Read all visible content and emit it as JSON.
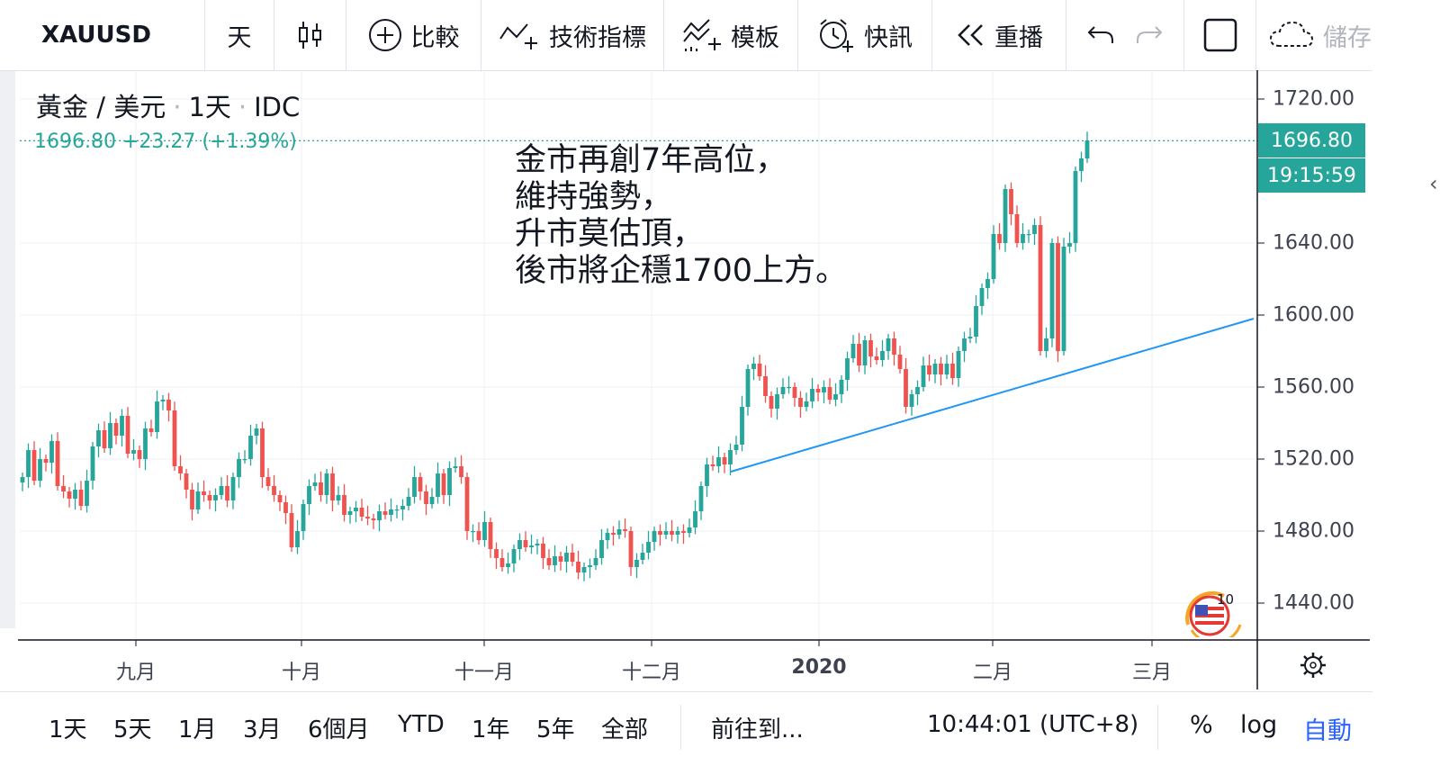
{
  "toolbar": {
    "symbol": "XAUUSD",
    "interval": "天",
    "compare": "比較",
    "indicators": "技術指標",
    "templates": "模板",
    "alert": "快訊",
    "replay": "重播",
    "save": "儲存"
  },
  "legend": {
    "title": "黃金 / 美元",
    "interval": "1天",
    "source": "IDC",
    "price_line": "1696.80 +23.27 (+1.39%)"
  },
  "annotation": "金市再創7年高位，\n維持強勢，\n升市莫估頂，\n後市將企穩1700上方。",
  "price_axis": {
    "labels": [
      "1720.00",
      "1640.00",
      "1600.00",
      "1560.00",
      "1520.00",
      "1480.00",
      "1440.00"
    ],
    "current_price": "1696.80",
    "countdown": "19:15:59"
  },
  "time_axis": {
    "labels": [
      "九月",
      "十月",
      "十一月",
      "十二月",
      "2020",
      "二月",
      "三月"
    ]
  },
  "badge": {
    "text": "10"
  },
  "bottom": {
    "ranges": [
      "1天",
      "5天",
      "1月",
      "3月",
      "6個月",
      "YTD",
      "1年",
      "5年",
      "全部"
    ],
    "goto": "前往到...",
    "time": "10:44:01 (UTC+8)",
    "percent": "%",
    "log": "log",
    "auto": "自動"
  },
  "colors": {
    "up": "#26a69a",
    "down": "#ef5350",
    "trend": "#2196f3",
    "accent": "#2962ff"
  },
  "chart_data": {
    "type": "candlestick",
    "title": "黃金 / 美元 · 1天 · IDC",
    "ylim": [
      1430,
      1735
    ],
    "y_ticks": [
      1440,
      1480,
      1520,
      1560,
      1600,
      1640,
      1720
    ],
    "x_labels": [
      "九月",
      "十月",
      "十一月",
      "十二月",
      "2020",
      "二月",
      "三月"
    ],
    "last_price": 1696.8,
    "change": 23.27,
    "change_pct": 1.39,
    "closes": [
      1510,
      1525,
      1508,
      1520,
      1518,
      1530,
      1505,
      1502,
      1498,
      1503,
      1494,
      1508,
      1527,
      1536,
      1526,
      1540,
      1533,
      1544,
      1523,
      1525,
      1520,
      1537,
      1535,
      1552,
      1553,
      1547,
      1516,
      1512,
      1503,
      1492,
      1502,
      1500,
      1497,
      1500,
      1505,
      1497,
      1510,
      1520,
      1520,
      1533,
      1537,
      1510,
      1505,
      1500,
      1496,
      1490,
      1471,
      1480,
      1495,
      1505,
      1507,
      1500,
      1512,
      1497,
      1500,
      1489,
      1491,
      1493,
      1488,
      1487,
      1486,
      1491,
      1489,
      1492,
      1492,
      1494,
      1499,
      1510,
      1502,
      1495,
      1499,
      1512,
      1500,
      1515,
      1516,
      1510,
      1480,
      1480,
      1475,
      1485,
      1470,
      1465,
      1460,
      1462,
      1470,
      1475,
      1471,
      1472,
      1473,
      1465,
      1461,
      1466,
      1463,
      1468,
      1463,
      1457,
      1460,
      1461,
      1465,
      1475,
      1479,
      1478,
      1481,
      1480,
      1460,
      1464,
      1468,
      1474,
      1480,
      1478,
      1480,
      1478,
      1480,
      1479,
      1482,
      1491,
      1505,
      1517,
      1516,
      1521,
      1517,
      1525,
      1528,
      1549,
      1570,
      1573,
      1566,
      1555,
      1548,
      1556,
      1560,
      1560,
      1554,
      1549,
      1552,
      1559,
      1557,
      1560,
      1553,
      1556,
      1564,
      1576,
      1584,
      1572,
      1586,
      1577,
      1575,
      1580,
      1587,
      1578,
      1570,
      1549,
      1556,
      1560,
      1572,
      1567,
      1573,
      1567,
      1573,
      1565,
      1580,
      1587,
      1588,
      1605,
      1615,
      1620,
      1645,
      1640,
      1670,
      1656,
      1640,
      1645,
      1645,
      1650,
      1580,
      1587,
      1640,
      1580,
      1638,
      1640,
      1680,
      1687,
      1697
    ]
  }
}
